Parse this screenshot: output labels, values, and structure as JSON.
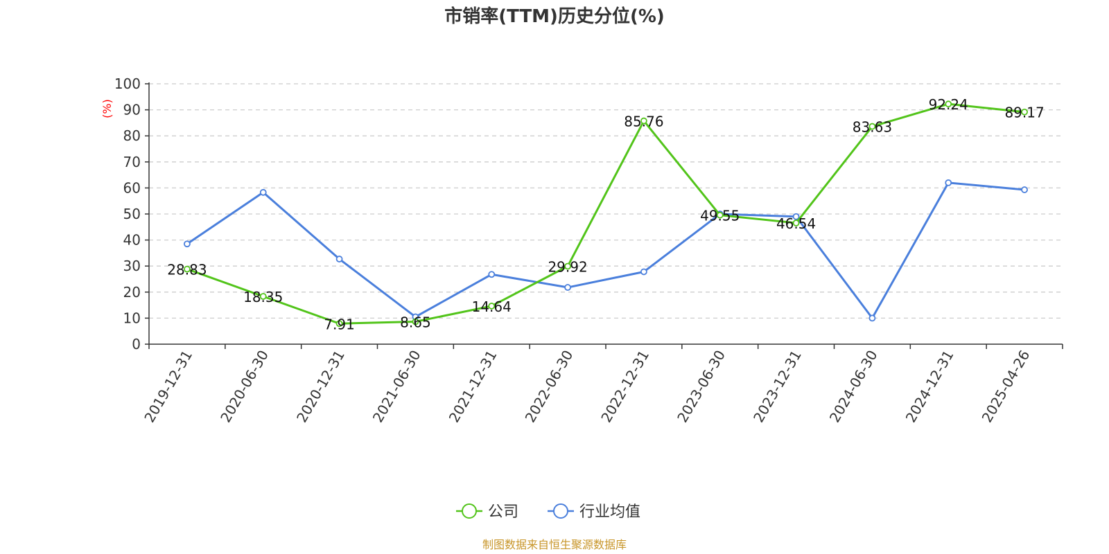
{
  "chart_data": {
    "type": "line",
    "title": "市销率(TTM)历史分位(%)",
    "ylabel": "(%)",
    "xlabel": "",
    "ylim": [
      0,
      100
    ],
    "yticks": [
      0,
      10,
      20,
      30,
      40,
      50,
      60,
      70,
      80,
      90,
      100
    ],
    "grid": true,
    "legend_position": "bottom-center",
    "categories": [
      "2019-12-31",
      "2020-06-30",
      "2020-12-31",
      "2021-06-30",
      "2021-12-31",
      "2022-06-30",
      "2022-12-31",
      "2023-06-30",
      "2023-12-31",
      "2024-06-30",
      "2024-12-31",
      "2025-04-26"
    ],
    "series": [
      {
        "name": "公司",
        "color": "#52c41a",
        "values": [
          28.83,
          18.35,
          7.91,
          8.65,
          14.64,
          29.92,
          85.76,
          49.55,
          46.54,
          83.63,
          92.24,
          89.17
        ],
        "labels": [
          "28.83",
          "18.35",
          "7.91",
          "8.65",
          "14.64",
          "29.92",
          "85.76",
          "49.55",
          "46.54",
          "83.63",
          "92.24",
          "89.17"
        ]
      },
      {
        "name": "行业均值",
        "color": "#4a7fdc",
        "values": [
          38.5,
          58.3,
          32.7,
          10.5,
          26.8,
          21.8,
          27.8,
          50.0,
          49.0,
          10.0,
          62.0,
          59.3
        ]
      }
    ]
  },
  "source_note": "制图数据来自恒生聚源数据库",
  "colors": {
    "source_note": "#c8962a",
    "ylabel": "#ff0000"
  }
}
